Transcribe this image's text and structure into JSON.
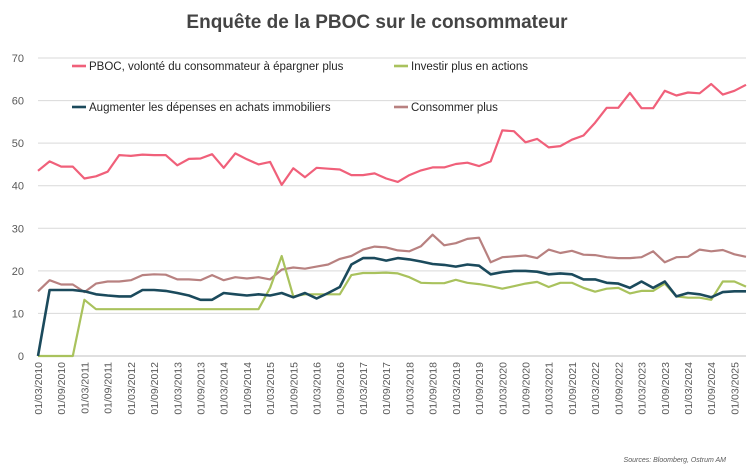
{
  "chart_data": {
    "type": "line",
    "title": "Enquête de la PBOC sur le consommateur",
    "source": "Sources: Bloomberg, Ostrum AM",
    "ylim": [
      0,
      70
    ],
    "yticks": [
      0,
      10,
      20,
      30,
      40,
      50,
      60,
      70
    ],
    "grid": true,
    "legend_placement": "top",
    "x_start": "2010-03",
    "x_step_months": 3,
    "x_tick_labels": [
      "01/03/2010",
      "01/09/2010",
      "01/03/2011",
      "01/09/2011",
      "01/03/2012",
      "01/09/2012",
      "01/03/2013",
      "01/09/2013",
      "01/03/2014",
      "01/09/2014",
      "01/03/2015",
      "01/09/2015",
      "01/03/2016",
      "01/09/2016",
      "01/03/2017",
      "01/09/2017",
      "01/03/2018",
      "01/09/2018",
      "01/03/2019",
      "01/09/2019",
      "01/03/2020",
      "01/09/2020",
      "01/03/2021",
      "01/09/2021",
      "01/03/2022",
      "01/09/2022",
      "01/03/2023",
      "01/09/2023",
      "01/03/2024",
      "01/09/2024",
      "01/03/2025"
    ],
    "series": [
      {
        "name": "PBOC, volonté du consommateur à épargner plus",
        "color": "#f0607a",
        "values": [
          43.5,
          45.7,
          44.5,
          44.5,
          41.7,
          42.2,
          43.3,
          47.2,
          47.0,
          47.3,
          47.2,
          47.2,
          44.8,
          46.3,
          46.4,
          47.4,
          44.2,
          47.6,
          46.2,
          45.0,
          45.6,
          40.2,
          44.1,
          42.0,
          44.2,
          44.0,
          43.8,
          42.5,
          42.5,
          42.9,
          41.7,
          40.9,
          42.5,
          43.6,
          44.3,
          44.3,
          45.1,
          45.4,
          44.6,
          45.7,
          53.0,
          52.8,
          50.2,
          51.0,
          49.0,
          49.3,
          50.8,
          51.8,
          54.8,
          58.3,
          58.3,
          61.8,
          58.2,
          58.2,
          62.3,
          61.2,
          61.9,
          61.7,
          63.9,
          61.4,
          62.3,
          63.7
        ]
      },
      {
        "name": "Investir plus en actions",
        "color": "#a9c25d",
        "values": [
          0,
          0,
          0,
          0,
          13.2,
          11.0,
          11.0,
          11.0,
          11.0,
          11.0,
          11.0,
          11.0,
          11.0,
          11.0,
          11.0,
          11.0,
          11.0,
          11.0,
          11.0,
          11.0,
          16.0,
          23.5,
          14.0,
          14.5,
          14.5,
          14.5,
          14.5,
          19.0,
          19.5,
          19.5,
          19.6,
          19.4,
          18.5,
          17.2,
          17.1,
          17.1,
          17.9,
          17.2,
          16.9,
          16.4,
          15.8,
          16.4,
          17.0,
          17.4,
          16.2,
          17.2,
          17.2,
          16.0,
          15.1,
          15.8,
          16.0,
          14.7,
          15.3,
          15.3,
          17.0,
          14.0,
          13.7,
          13.7,
          13.2,
          17.5,
          17.5,
          16.3
        ]
      },
      {
        "name": "Augmenter les dépenses en achats immobiliers",
        "color": "#1b4a5c",
        "values": [
          0,
          15.5,
          15.5,
          15.5,
          15.2,
          14.5,
          14.2,
          14.0,
          14.0,
          15.5,
          15.5,
          15.3,
          14.8,
          14.2,
          13.2,
          13.2,
          14.8,
          14.5,
          14.2,
          14.5,
          14.2,
          14.8,
          13.8,
          14.8,
          13.5,
          14.8,
          16.2,
          21.5,
          23.0,
          23.0,
          22.4,
          23.0,
          22.7,
          22.2,
          21.6,
          21.4,
          21.0,
          21.5,
          21.2,
          19.2,
          19.7,
          20.0,
          20.0,
          19.8,
          19.2,
          19.4,
          19.2,
          18.0,
          18.0,
          17.2,
          17.0,
          16.0,
          17.5,
          16.0,
          17.5,
          14.0,
          14.8,
          14.5,
          13.8,
          15.0,
          15.2,
          15.2
        ]
      },
      {
        "name": "Consommer plus",
        "color": "#b88180",
        "values": [
          15.2,
          17.8,
          16.8,
          16.8,
          15.0,
          17.0,
          17.5,
          17.5,
          17.8,
          19.0,
          19.2,
          19.1,
          18.0,
          18.0,
          17.8,
          19.0,
          17.8,
          18.5,
          18.2,
          18.5,
          18.0,
          20.3,
          20.8,
          20.5,
          21.0,
          21.5,
          22.8,
          23.5,
          25.0,
          25.7,
          25.5,
          24.8,
          24.6,
          25.8,
          28.5,
          26.0,
          26.5,
          27.5,
          27.8,
          22.0,
          23.2,
          23.4,
          23.6,
          23.0,
          25.0,
          24.2,
          24.7,
          23.8,
          23.7,
          23.2,
          23.0,
          23.0,
          23.2,
          24.6,
          22.0,
          23.2,
          23.3,
          25.0,
          24.6,
          24.9,
          23.9,
          23.3
        ]
      }
    ]
  }
}
